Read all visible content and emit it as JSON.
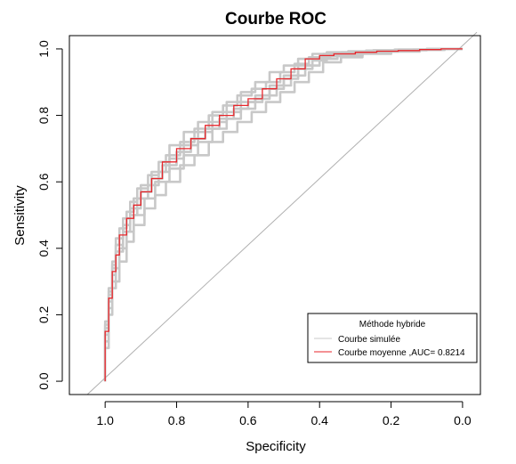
{
  "chart_data": {
    "type": "line",
    "title": "Courbe ROC",
    "xlabel": "Specificity",
    "ylabel": "Sensitivity",
    "x_reversed": true,
    "xlim": [
      -0.05,
      1.1
    ],
    "ylim": [
      -0.04,
      1.04
    ],
    "x_ticks": [
      1.0,
      0.8,
      0.6,
      0.4,
      0.2,
      0.0
    ],
    "x_tick_labels": [
      "1.0",
      "0.8",
      "0.6",
      "0.4",
      "0.2",
      "0.0"
    ],
    "y_ticks": [
      0.0,
      0.2,
      0.4,
      0.6,
      0.8,
      1.0
    ],
    "y_tick_labels": [
      "0.0",
      "0.2",
      "0.4",
      "0.6",
      "0.8",
      "1.0"
    ],
    "grid": false,
    "legend": {
      "position": "bottom-right",
      "title": "Méthode hybride",
      "entries": [
        {
          "label": "Courbe simulée",
          "color": "#c8c8c8"
        },
        {
          "label": "Courbe moyenne ,AUC= 0.8214",
          "color": "#e8262b"
        }
      ]
    },
    "diagonal": {
      "from": [
        1.05,
        -0.04
      ],
      "to": [
        -0.04,
        1.05
      ],
      "color": "#b0b0b0"
    },
    "series": [
      {
        "name": "Courbe moyenne ,AUC= 0.8214",
        "color": "#e8262b",
        "x": [
          1.0,
          1.0,
          0.99,
          0.98,
          0.97,
          0.96,
          0.94,
          0.92,
          0.9,
          0.87,
          0.84,
          0.8,
          0.76,
          0.72,
          0.68,
          0.64,
          0.6,
          0.56,
          0.52,
          0.48,
          0.44,
          0.4,
          0.36,
          0.3,
          0.24,
          0.18,
          0.12,
          0.06,
          0.0
        ],
        "y": [
          0.0,
          0.05,
          0.15,
          0.25,
          0.33,
          0.38,
          0.44,
          0.49,
          0.53,
          0.57,
          0.61,
          0.66,
          0.7,
          0.73,
          0.77,
          0.8,
          0.83,
          0.85,
          0.88,
          0.91,
          0.94,
          0.97,
          0.98,
          0.985,
          0.99,
          0.993,
          0.995,
          0.998,
          1.0
        ]
      }
    ],
    "simulated_series": [
      {
        "x": [
          1.0,
          1.0,
          0.99,
          0.98,
          0.97,
          0.95,
          0.93,
          0.91,
          0.88,
          0.85,
          0.82,
          0.78,
          0.74,
          0.7,
          0.66,
          0.62,
          0.58,
          0.54,
          0.5,
          0.46,
          0.42,
          0.38,
          0.32,
          0.25,
          0.18,
          0.1,
          0.0
        ],
        "y": [
          0.0,
          0.07,
          0.18,
          0.28,
          0.36,
          0.43,
          0.49,
          0.54,
          0.58,
          0.62,
          0.66,
          0.71,
          0.75,
          0.78,
          0.81,
          0.84,
          0.87,
          0.9,
          0.93,
          0.95,
          0.97,
          0.985,
          0.99,
          0.993,
          0.996,
          0.998,
          1.0
        ]
      },
      {
        "x": [
          1.0,
          1.0,
          0.99,
          0.98,
          0.96,
          0.94,
          0.92,
          0.89,
          0.86,
          0.83,
          0.79,
          0.75,
          0.71,
          0.67,
          0.63,
          0.59,
          0.55,
          0.51,
          0.47,
          0.43,
          0.39,
          0.34,
          0.28,
          0.2,
          0.12,
          0.05,
          0.0
        ],
        "y": [
          0.0,
          0.04,
          0.12,
          0.22,
          0.3,
          0.36,
          0.42,
          0.47,
          0.52,
          0.56,
          0.6,
          0.65,
          0.68,
          0.72,
          0.75,
          0.78,
          0.81,
          0.84,
          0.87,
          0.9,
          0.93,
          0.96,
          0.975,
          0.985,
          0.992,
          0.997,
          1.0
        ]
      },
      {
        "x": [
          1.0,
          1.0,
          0.99,
          0.98,
          0.97,
          0.95,
          0.93,
          0.9,
          0.87,
          0.84,
          0.8,
          0.76,
          0.72,
          0.68,
          0.64,
          0.6,
          0.56,
          0.52,
          0.48,
          0.44,
          0.4,
          0.35,
          0.28,
          0.2,
          0.12,
          0.05,
          0.0
        ],
        "y": [
          0.0,
          0.06,
          0.16,
          0.26,
          0.34,
          0.41,
          0.47,
          0.52,
          0.57,
          0.61,
          0.65,
          0.69,
          0.73,
          0.76,
          0.79,
          0.82,
          0.84,
          0.86,
          0.89,
          0.92,
          0.95,
          0.97,
          0.98,
          0.988,
          0.993,
          0.997,
          1.0
        ]
      },
      {
        "x": [
          1.0,
          1.0,
          0.99,
          0.98,
          0.97,
          0.96,
          0.94,
          0.92,
          0.89,
          0.86,
          0.82,
          0.78,
          0.74,
          0.7,
          0.66,
          0.62,
          0.58,
          0.54,
          0.5,
          0.46,
          0.42,
          0.38,
          0.33,
          0.26,
          0.18,
          0.1,
          0.0
        ],
        "y": [
          0.0,
          0.03,
          0.1,
          0.2,
          0.28,
          0.34,
          0.4,
          0.45,
          0.5,
          0.55,
          0.6,
          0.64,
          0.68,
          0.72,
          0.76,
          0.79,
          0.82,
          0.85,
          0.88,
          0.91,
          0.94,
          0.965,
          0.978,
          0.986,
          0.992,
          0.996,
          1.0
        ]
      },
      {
        "x": [
          1.0,
          1.0,
          0.99,
          0.98,
          0.97,
          0.95,
          0.93,
          0.91,
          0.88,
          0.85,
          0.82,
          0.78,
          0.74,
          0.7,
          0.66,
          0.62,
          0.58,
          0.54,
          0.5,
          0.46,
          0.42,
          0.37,
          0.3,
          0.22,
          0.14,
          0.06,
          0.0
        ],
        "y": [
          0.0,
          0.05,
          0.14,
          0.24,
          0.32,
          0.39,
          0.45,
          0.5,
          0.55,
          0.59,
          0.63,
          0.67,
          0.71,
          0.75,
          0.78,
          0.81,
          0.84,
          0.86,
          0.89,
          0.92,
          0.95,
          0.975,
          0.985,
          0.99,
          0.994,
          0.998,
          1.0
        ]
      },
      {
        "x": [
          1.0,
          1.0,
          0.99,
          0.98,
          0.97,
          0.96,
          0.94,
          0.92,
          0.9,
          0.87,
          0.83,
          0.79,
          0.75,
          0.71,
          0.67,
          0.63,
          0.59,
          0.55,
          0.51,
          0.47,
          0.43,
          0.39,
          0.34,
          0.27,
          0.19,
          0.1,
          0.0
        ],
        "y": [
          0.0,
          0.06,
          0.17,
          0.27,
          0.35,
          0.41,
          0.46,
          0.51,
          0.55,
          0.59,
          0.63,
          0.68,
          0.72,
          0.76,
          0.8,
          0.83,
          0.86,
          0.88,
          0.9,
          0.93,
          0.955,
          0.975,
          0.985,
          0.99,
          0.995,
          0.998,
          1.0
        ]
      }
    ]
  }
}
